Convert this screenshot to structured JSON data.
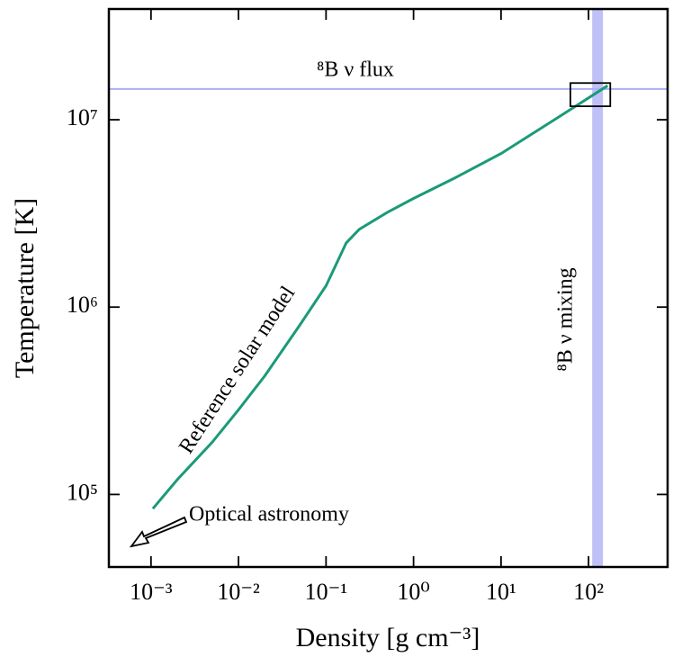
{
  "chart_data": {
    "type": "line",
    "log_x": true,
    "log_y": true,
    "x_label": "Density [g cm⁻³]",
    "y_label": "Temperature [K]",
    "xlim": [
      0.00033,
      800
    ],
    "ylim": [
      41000,
      39000000
    ],
    "xticks": [
      {
        "value": 0.001,
        "label": "10⁻³"
      },
      {
        "value": 0.01,
        "label": "10⁻²"
      },
      {
        "value": 0.1,
        "label": "10⁻¹"
      },
      {
        "value": 1,
        "label": "10⁰"
      },
      {
        "value": 10,
        "label": "10¹"
      },
      {
        "value": 100,
        "label": "10²"
      }
    ],
    "yticks": [
      {
        "value": 100000,
        "label": "10⁵"
      },
      {
        "value": 1000000,
        "label": "10⁶"
      },
      {
        "value": 10000000,
        "label": "10⁷"
      }
    ],
    "series": [
      {
        "name": "Reference solar model",
        "color": "#1b9a78",
        "x": [
          0.00105,
          0.002,
          0.005,
          0.01,
          0.02,
          0.05,
          0.1,
          0.17,
          0.24,
          0.5,
          1,
          3,
          10,
          45,
          165
        ],
        "values": [
          84000,
          120000,
          190000,
          283000,
          430000,
          800000,
          1300000,
          2200000,
          2600000,
          3200000,
          3800000,
          4900000,
          6600000,
          10300000,
          15200000
        ]
      }
    ],
    "hline": {
      "label": "⁸B ν flux",
      "value": 14600000,
      "color": "#aab0f5"
    },
    "vband": {
      "label": "⁸B ν mixing",
      "values": [
        110,
        146
      ],
      "color": "#a9acf3"
    },
    "box": {
      "x": [
        62,
        177
      ],
      "y": [
        11800000,
        15700000
      ]
    },
    "arrow_label": "Optical astronomy"
  }
}
